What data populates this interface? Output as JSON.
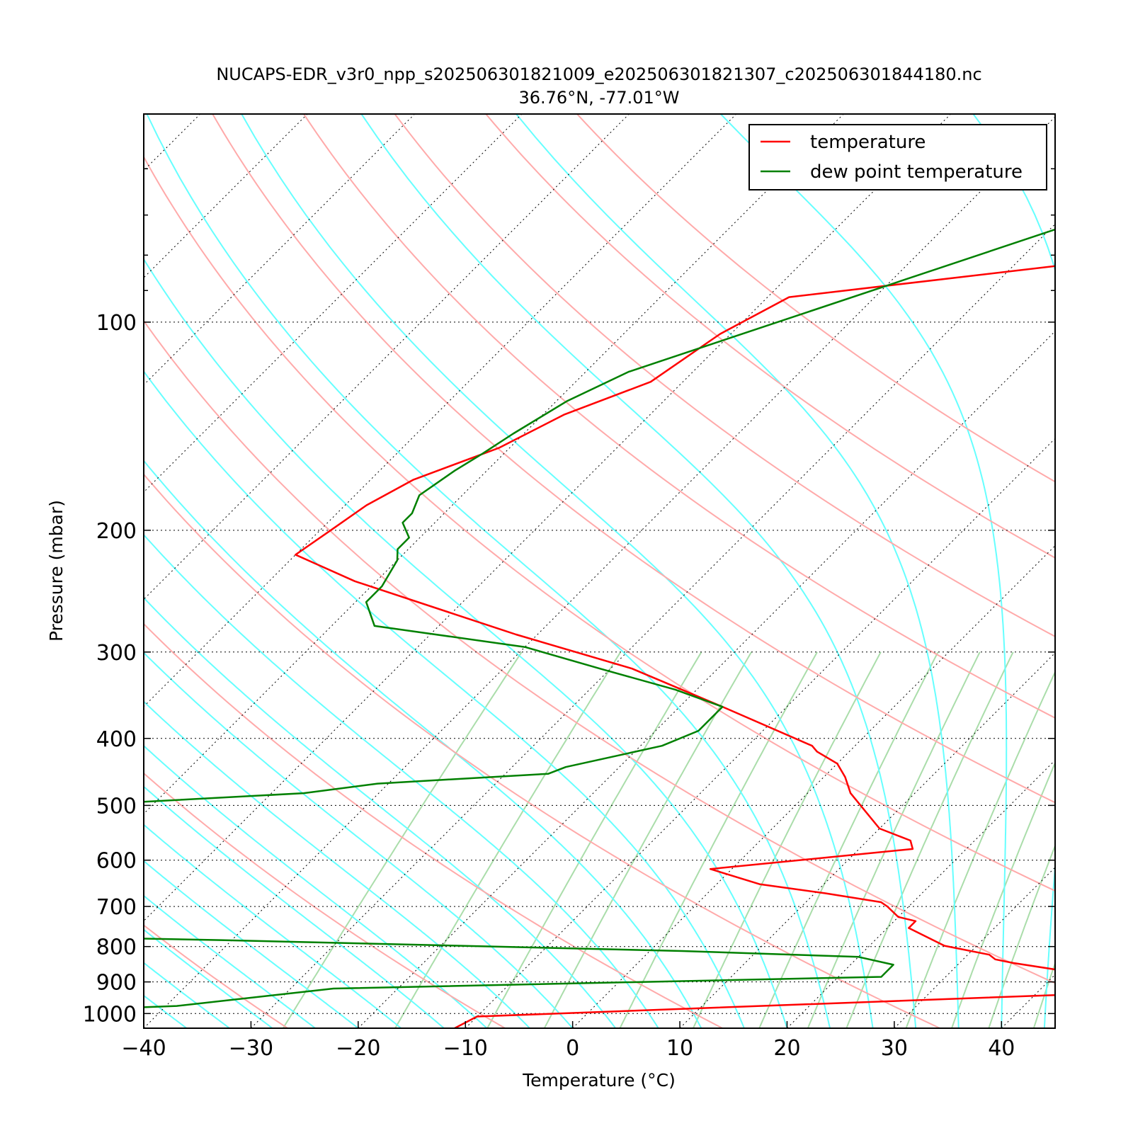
{
  "chart_data": {
    "type": "line",
    "title": "NUCAPS-EDR_v3r0_npp_s202506301821009_e202506301821307_c202506301844180.nc",
    "subtitle": "36.76°N, -77.01°W",
    "xlabel": "Temperature (°C)",
    "ylabel": "Pressure (mbar)",
    "xlim": [
      -40,
      45
    ],
    "ylim": [
      1050,
      50
    ],
    "yscale": "log",
    "skew": true,
    "x_ticks": [
      -40,
      -30,
      -20,
      -10,
      0,
      10,
      20,
      30,
      40
    ],
    "x_tick_labels": [
      "−40",
      "−30",
      "−20",
      "−10",
      "0",
      "10",
      "20",
      "30",
      "40"
    ],
    "y_ticks": [
      100,
      200,
      300,
      400,
      500,
      600,
      700,
      800,
      900,
      1000
    ],
    "y_tick_labels": [
      "100",
      "200",
      "300",
      "400",
      "500",
      "600",
      "700",
      "800",
      "900",
      "1000"
    ],
    "grid": true,
    "legend_position": "top-right",
    "series": [
      {
        "name": "temperature",
        "color": "#ff0000",
        "points": [
          [
            30,
            50
          ],
          [
            -10,
            68
          ],
          [
            -21,
            81
          ],
          [
            -48,
            92
          ],
          [
            -51,
            104
          ],
          [
            -53,
            122
          ],
          [
            -58,
            136
          ],
          [
            -61,
            152
          ],
          [
            -66,
            169
          ],
          [
            -68,
            184
          ],
          [
            -69,
            200
          ],
          [
            -70,
            217
          ],
          [
            -62,
            237
          ],
          [
            -42,
            283
          ],
          [
            -28,
            317
          ],
          [
            -16,
            360
          ],
          [
            -4,
            410
          ],
          [
            -3,
            418
          ],
          [
            0,
            435
          ],
          [
            2,
            455
          ],
          [
            4,
            480
          ],
          [
            10,
            540
          ],
          [
            14,
            562
          ],
          [
            15,
            578
          ],
          [
            -2,
            618
          ],
          [
            4,
            650
          ],
          [
            11,
            670
          ],
          [
            17,
            690
          ],
          [
            18,
            700
          ],
          [
            20,
            725
          ],
          [
            22,
            735
          ],
          [
            22,
            752
          ],
          [
            27,
            798
          ],
          [
            32,
            822
          ],
          [
            33,
            835
          ],
          [
            35,
            845
          ],
          [
            43,
            878
          ],
          [
            50,
            930
          ],
          [
            -10,
            1010
          ],
          [
            -11,
            1050
          ]
        ]
      },
      {
        "name": "dew point temperature",
        "color": "#008000",
        "points": [
          [
            -8,
            50
          ],
          [
            -50,
            106
          ],
          [
            -56,
            118
          ],
          [
            -59,
            130
          ],
          [
            -61,
            145
          ],
          [
            -62,
            155
          ],
          [
            -63,
            164
          ],
          [
            -64,
            178
          ],
          [
            -63,
            189
          ],
          [
            -63,
            195
          ],
          [
            -61,
            205
          ],
          [
            -61,
            213
          ],
          [
            -60,
            221
          ],
          [
            -59,
            241
          ],
          [
            -59,
            254
          ],
          [
            -56,
            275
          ],
          [
            -40,
            295
          ],
          [
            -31,
            317
          ],
          [
            -22,
            340
          ],
          [
            -16,
            360
          ],
          [
            -16,
            390
          ],
          [
            -18,
            410
          ],
          [
            -25,
            440
          ],
          [
            -26,
            450
          ],
          [
            -41,
            465
          ],
          [
            -47,
            480
          ],
          [
            -67,
            500
          ],
          [
            -78,
            520
          ],
          [
            -95,
            555
          ],
          [
            -100,
            560
          ],
          [
            -175,
            700
          ],
          [
            -85,
            760
          ],
          [
            -41,
            783
          ],
          [
            3,
            812
          ],
          [
            20,
            828
          ],
          [
            24,
            850
          ],
          [
            24,
            885
          ],
          [
            -26,
            920
          ],
          [
            -39,
            975
          ],
          [
            -46,
            985
          ],
          [
            -51,
            1010
          ],
          [
            -52,
            1050
          ]
        ]
      }
    ],
    "background_lines": {
      "dry_adiabats": "#ffaaaa",
      "moist_adiabats": "#66ffff",
      "mixing_ratio": "#aaddaa",
      "isotherms": "#000000"
    }
  }
}
